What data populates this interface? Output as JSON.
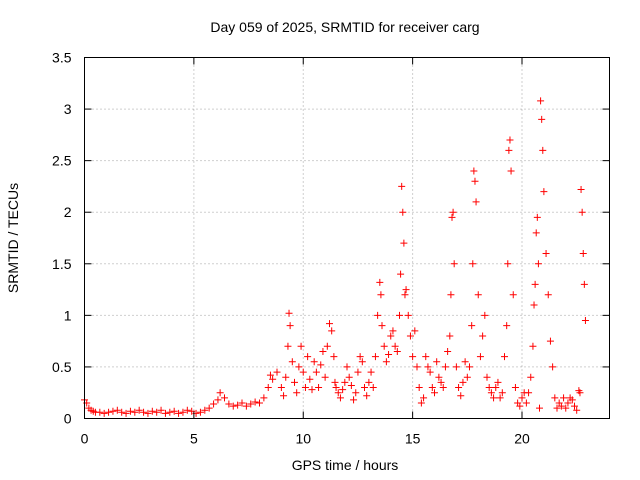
{
  "chart_data": {
    "type": "scatter",
    "title": "Day 059 of 2025, SRMTID for receiver carg",
    "xlabel": "GPS time / hours",
    "ylabel": "SRMTID / TECUs",
    "xlim": [
      0,
      24
    ],
    "ylim": [
      0,
      3.5
    ],
    "xticks": [
      0,
      5,
      10,
      15,
      20
    ],
    "yticks": [
      0,
      0.5,
      1,
      1.5,
      2,
      2.5,
      3,
      3.5
    ],
    "xtick_labels": [
      "0",
      "5",
      "10",
      "15",
      "20"
    ],
    "ytick_labels": [
      "0",
      "0.5",
      "1",
      "1.5",
      "2",
      "2.5",
      "3",
      "3.5"
    ],
    "grid": true,
    "marker": "+",
    "series": [
      {
        "name": "SRMTID",
        "color": "#ff0000",
        "x": [
          0.0,
          0.1,
          0.2,
          0.3,
          0.4,
          0.5,
          0.7,
          0.9,
          1.1,
          1.3,
          1.5,
          1.7,
          1.9,
          2.1,
          2.3,
          2.5,
          2.7,
          2.9,
          3.1,
          3.3,
          3.5,
          3.7,
          3.9,
          4.1,
          4.3,
          4.5,
          4.7,
          4.9,
          5.1,
          5.3,
          5.5,
          5.7,
          5.9,
          6.1,
          6.2,
          6.4,
          6.6,
          6.8,
          7.0,
          7.2,
          7.4,
          7.6,
          7.8,
          8.0,
          8.2,
          8.4,
          8.5,
          8.6,
          8.8,
          9.0,
          9.1,
          9.2,
          9.3,
          9.35,
          9.4,
          9.5,
          9.6,
          9.7,
          9.8,
          9.9,
          10.0,
          10.1,
          10.2,
          10.3,
          10.4,
          10.5,
          10.6,
          10.7,
          10.8,
          10.9,
          11.0,
          11.1,
          11.2,
          11.3,
          11.4,
          11.45,
          11.5,
          11.6,
          11.7,
          11.8,
          11.9,
          12.0,
          12.1,
          12.2,
          12.3,
          12.4,
          12.5,
          12.6,
          12.7,
          12.8,
          12.9,
          13.0,
          13.1,
          13.2,
          13.3,
          13.4,
          13.5,
          13.55,
          13.6,
          13.7,
          13.8,
          13.9,
          14.0,
          14.1,
          14.2,
          14.3,
          14.4,
          14.45,
          14.5,
          14.55,
          14.6,
          14.65,
          14.7,
          14.8,
          14.9,
          15.0,
          15.1,
          15.2,
          15.3,
          15.4,
          15.5,
          15.6,
          15.7,
          15.8,
          15.9,
          16.0,
          16.1,
          16.2,
          16.3,
          16.4,
          16.5,
          16.6,
          16.7,
          16.75,
          16.8,
          16.85,
          16.9,
          17.0,
          17.1,
          17.2,
          17.3,
          17.4,
          17.5,
          17.6,
          17.7,
          17.75,
          17.8,
          17.85,
          17.9,
          18.0,
          18.1,
          18.2,
          18.3,
          18.4,
          18.5,
          18.6,
          18.7,
          18.8,
          18.9,
          19.0,
          19.1,
          19.2,
          19.3,
          19.35,
          19.4,
          19.45,
          19.5,
          19.6,
          19.7,
          19.8,
          19.9,
          20.0,
          20.1,
          20.2,
          20.3,
          20.4,
          20.5,
          20.55,
          20.6,
          20.65,
          20.7,
          20.75,
          20.8,
          20.85,
          20.9,
          20.95,
          21.0,
          21.1,
          21.2,
          21.3,
          21.4,
          21.5,
          21.6,
          21.7,
          21.8,
          21.9,
          22.0,
          22.1,
          22.2,
          22.3,
          22.4,
          22.5,
          22.6,
          22.65,
          22.7,
          22.75,
          22.8,
          22.85,
          22.9
        ],
        "y": [
          0.18,
          0.15,
          0.1,
          0.08,
          0.07,
          0.06,
          0.06,
          0.05,
          0.06,
          0.07,
          0.08,
          0.06,
          0.05,
          0.07,
          0.06,
          0.08,
          0.06,
          0.05,
          0.07,
          0.06,
          0.08,
          0.05,
          0.06,
          0.07,
          0.05,
          0.06,
          0.08,
          0.07,
          0.05,
          0.06,
          0.08,
          0.1,
          0.14,
          0.18,
          0.25,
          0.2,
          0.14,
          0.12,
          0.13,
          0.15,
          0.12,
          0.14,
          0.16,
          0.15,
          0.2,
          0.3,
          0.42,
          0.38,
          0.45,
          0.3,
          0.22,
          0.4,
          0.7,
          1.02,
          0.9,
          0.55,
          0.35,
          0.25,
          0.5,
          0.7,
          0.45,
          0.3,
          0.6,
          0.38,
          0.28,
          0.55,
          0.45,
          0.3,
          0.52,
          0.65,
          0.4,
          0.7,
          0.92,
          0.85,
          0.6,
          0.35,
          0.3,
          0.25,
          0.2,
          0.28,
          0.35,
          0.5,
          0.4,
          0.32,
          0.18,
          0.25,
          0.45,
          0.6,
          0.55,
          0.3,
          0.22,
          0.35,
          0.45,
          0.3,
          0.6,
          1.0,
          1.32,
          1.2,
          0.9,
          0.7,
          0.55,
          0.62,
          0.8,
          0.85,
          0.7,
          0.65,
          1.0,
          1.4,
          2.25,
          2.0,
          1.7,
          1.2,
          1.25,
          1.0,
          0.8,
          0.6,
          0.85,
          0.5,
          0.3,
          0.15,
          0.2,
          0.6,
          0.5,
          0.45,
          0.3,
          0.25,
          0.55,
          0.4,
          0.35,
          0.3,
          0.5,
          0.65,
          0.8,
          1.2,
          1.95,
          2.0,
          1.5,
          0.5,
          0.3,
          0.22,
          0.35,
          0.55,
          0.4,
          0.5,
          0.9,
          1.5,
          2.4,
          2.3,
          2.1,
          1.2,
          0.6,
          0.8,
          1.0,
          0.4,
          0.3,
          0.25,
          0.2,
          0.3,
          0.35,
          0.2,
          0.25,
          0.6,
          0.9,
          1.5,
          2.6,
          2.7,
          2.4,
          1.2,
          0.3,
          0.15,
          0.12,
          0.2,
          0.25,
          0.15,
          0.25,
          0.4,
          0.7,
          1.1,
          1.3,
          1.8,
          1.95,
          1.5,
          0.1,
          3.08,
          2.9,
          2.6,
          2.2,
          1.6,
          1.2,
          0.75,
          0.5,
          0.2,
          0.1,
          0.15,
          0.12,
          0.2,
          0.1,
          0.15,
          0.2,
          0.18,
          0.12,
          0.08,
          0.27,
          0.25,
          2.22,
          2.0,
          1.6,
          1.3,
          0.95
        ]
      }
    ]
  }
}
